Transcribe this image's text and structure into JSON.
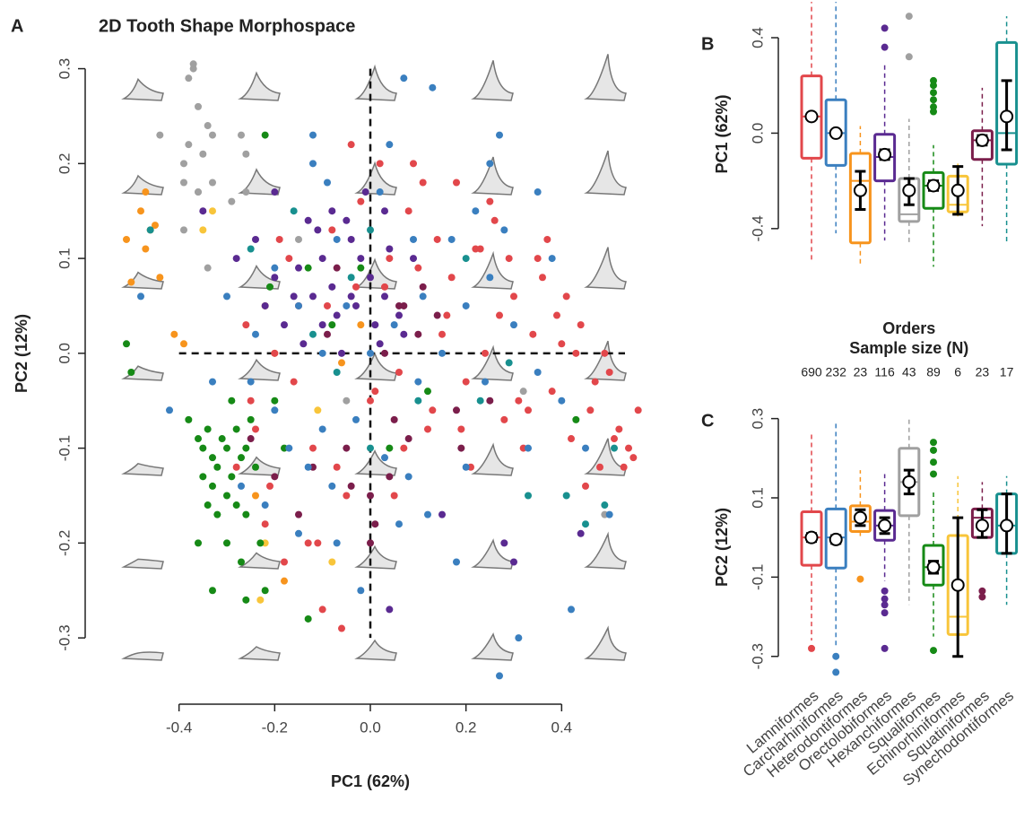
{
  "chart_data": [
    {
      "type": "scatter",
      "panel": "A",
      "title": "2D Tooth Shape Morphospace",
      "xlabel": "PC1 (62%)",
      "ylabel": "PC2 (12%)",
      "xlim": [
        -0.57,
        0.57
      ],
      "ylim": [
        -0.35,
        0.31
      ],
      "xticks": [
        -0.4,
        -0.2,
        {
          "value": 0,
          "label": "0.0"
        },
        0.2,
        0.4
      ],
      "yticks": [
        -0.3,
        -0.2,
        -0.1,
        {
          "value": 0,
          "label": "0.0"
        },
        0.1,
        0.2,
        0.3
      ],
      "series": [
        {
          "color": "#a0a0a0",
          "x": [
            -0.37,
            -0.37,
            -0.38,
            -0.36,
            -0.34,
            -0.38,
            -0.39,
            -0.35,
            -0.33,
            -0.36,
            -0.33,
            -0.27,
            -0.26,
            -0.29,
            -0.26,
            -0.44,
            -0.39,
            -0.34,
            -0.15,
            -0.05,
            0.32,
            0.49,
            -0.39,
            -0.36
          ],
          "values": [
            0.3,
            0.305,
            0.29,
            0.26,
            0.24,
            0.22,
            0.2,
            0.21,
            0.23,
            0.17,
            0.18,
            0.23,
            0.21,
            0.16,
            0.17,
            0.23,
            0.13,
            0.09,
            0.12,
            -0.05,
            -0.04,
            -0.17,
            0.18,
            0.17
          ]
        },
        {
          "color": "#f7941d",
          "x": [
            -0.51,
            -0.48,
            -0.46,
            -0.45,
            -0.47,
            -0.5,
            -0.44,
            -0.41,
            -0.39,
            -0.22,
            -0.2,
            -0.24,
            -0.18,
            -0.02,
            -0.06,
            -0.47
          ],
          "values": [
            0.12,
            0.15,
            0.13,
            0.135,
            0.11,
            0.075,
            0.08,
            0.02,
            0.01,
            0.05,
            0.0,
            -0.15,
            -0.24,
            0.03,
            -0.01,
            0.17
          ]
        },
        {
          "color": "#f8c53a",
          "x": [
            -0.33,
            -0.23,
            -0.22,
            -0.11,
            -0.08,
            -0.35
          ],
          "values": [
            0.15,
            -0.26,
            -0.2,
            -0.06,
            -0.22,
            0.13
          ]
        },
        {
          "color": "#168a16",
          "x": [
            -0.38,
            -0.36,
            -0.35,
            -0.34,
            -0.33,
            -0.32,
            -0.31,
            -0.3,
            -0.29,
            -0.28,
            -0.27,
            -0.26,
            -0.25,
            -0.24,
            -0.33,
            -0.3,
            -0.28,
            -0.26,
            -0.32,
            -0.35,
            -0.34,
            -0.3,
            -0.27,
            -0.23,
            -0.22,
            -0.33,
            -0.26,
            -0.13,
            -0.51,
            -0.5,
            -0.22,
            -0.21,
            -0.13,
            -0.08,
            -0.02,
            0.04,
            0.12,
            0.43,
            -0.2,
            -0.18,
            -0.36,
            -0.29
          ],
          "values": [
            -0.07,
            -0.09,
            -0.1,
            -0.08,
            -0.11,
            -0.12,
            -0.09,
            -0.1,
            -0.13,
            -0.08,
            -0.11,
            -0.1,
            -0.07,
            -0.12,
            -0.14,
            -0.15,
            -0.16,
            -0.17,
            -0.17,
            -0.13,
            -0.16,
            -0.2,
            -0.22,
            -0.2,
            -0.25,
            -0.25,
            -0.26,
            -0.28,
            0.01,
            -0.02,
            0.23,
            0.07,
            0.09,
            0.03,
            0.09,
            -0.1,
            -0.04,
            -0.07,
            -0.05,
            -0.1,
            -0.2,
            -0.05
          ]
        },
        {
          "color": "#18908f",
          "x": [
            -0.46,
            -0.25,
            -0.12,
            -0.07,
            0.0,
            0.2,
            0.33,
            0.41,
            0.45,
            0.51,
            0.49,
            0.1,
            -0.16,
            0.0,
            -0.04,
            0.23,
            0.29
          ],
          "values": [
            0.13,
            0.11,
            0.02,
            -0.02,
            -0.1,
            0.1,
            -0.15,
            -0.15,
            -0.18,
            -0.1,
            -0.16,
            -0.05,
            0.15,
            0.13,
            0.08,
            -0.05,
            -0.01
          ]
        },
        {
          "color": "#7b1e4b",
          "x": [
            -0.12,
            0.0,
            0.05,
            -0.04,
            0.1,
            -0.2,
            0.03,
            0.08,
            -0.05,
            0.18,
            0.14,
            0.01,
            0.0,
            -0.07,
            0.06,
            -0.15,
            0.19,
            0.25,
            -0.09,
            0.04,
            0.07,
            0.11,
            -0.25
          ],
          "values": [
            -0.12,
            -0.15,
            -0.07,
            -0.14,
            0.02,
            -0.13,
            0.0,
            -0.09,
            -0.1,
            -0.06,
            0.04,
            -0.18,
            -0.2,
            0.09,
            0.05,
            -0.17,
            -0.1,
            -0.05,
            0.02,
            -0.13,
            0.05,
            0.07,
            -0.09
          ]
        },
        {
          "color": "#5a2a91",
          "x": [
            -0.2,
            -0.13,
            -0.08,
            -0.05,
            -0.1,
            -0.15,
            -0.2,
            -0.16,
            -0.12,
            -0.08,
            -0.04,
            -0.02,
            0.0,
            0.03,
            0.06,
            -0.18,
            -0.1,
            -0.07,
            -0.03,
            0.01,
            -0.14,
            -0.06,
            0.02,
            -0.24,
            -0.28,
            -0.22,
            -0.11,
            -0.04,
            0.04,
            0.09,
            0.15,
            0.28,
            0.3,
            0.44,
            0.04,
            -0.01,
            0.03,
            -0.35,
            0.07
          ],
          "values": [
            0.17,
            0.14,
            0.15,
            0.14,
            0.1,
            0.09,
            0.08,
            0.06,
            0.06,
            0.07,
            0.06,
            0.1,
            0.08,
            0.06,
            0.04,
            0.03,
            0.03,
            0.04,
            0.05,
            0.03,
            0.01,
            0.0,
            0.01,
            0.12,
            0.1,
            0.05,
            0.13,
            0.12,
            0.11,
            0.1,
            -0.17,
            -0.2,
            -0.22,
            -0.19,
            -0.27,
            0.17,
            0.15,
            0.15,
            0.02
          ]
        },
        {
          "color": "#e2474b",
          "x": [
            -0.28,
            -0.25,
            -0.22,
            -0.2,
            -0.18,
            -0.15,
            -0.12,
            -0.1,
            -0.08,
            -0.05,
            -0.03,
            0.0,
            0.02,
            0.04,
            0.06,
            0.08,
            0.1,
            0.12,
            0.14,
            0.16,
            0.18,
            0.2,
            0.22,
            0.24,
            0.26,
            0.28,
            0.3,
            0.32,
            0.34,
            0.36,
            0.38,
            0.4,
            0.42,
            0.44,
            0.46,
            0.48,
            0.5,
            0.52,
            0.54,
            0.56,
            -0.26,
            -0.21,
            -0.17,
            -0.13,
            -0.09,
            -0.06,
            -0.02,
            0.01,
            0.05,
            0.09,
            0.13,
            0.17,
            0.21,
            0.25,
            0.29,
            0.33,
            0.37,
            0.41,
            0.45,
            0.49,
            0.53,
            -0.24,
            -0.16,
            -0.07,
            0.03,
            0.11,
            0.19,
            0.27,
            0.35,
            0.43,
            0.51,
            -0.19,
            -0.11,
            -0.04,
            0.07,
            0.15,
            0.23,
            0.31,
            0.39,
            0.47,
            0.55
          ],
          "values": [
            -0.12,
            -0.05,
            -0.18,
            0.0,
            -0.22,
            0.05,
            -0.1,
            -0.27,
            0.13,
            -0.15,
            0.07,
            -0.05,
            0.2,
            0.1,
            -0.02,
            0.15,
            0.09,
            -0.08,
            0.12,
            0.04,
            0.18,
            -0.03,
            0.11,
            0.0,
            0.14,
            -0.07,
            0.06,
            -0.1,
            0.02,
            0.08,
            -0.04,
            0.01,
            -0.09,
            0.03,
            -0.06,
            -0.12,
            -0.02,
            -0.08,
            -0.1,
            -0.06,
            0.03,
            -0.14,
            0.1,
            -0.2,
            0.05,
            -0.29,
            0.16,
            -0.04,
            -0.15,
            0.2,
            -0.06,
            0.08,
            -0.12,
            0.16,
            0.1,
            -0.06,
            0.12,
            0.06,
            -0.14,
            0.0,
            -0.12,
            -0.08,
            -0.03,
            -0.12,
            0.07,
            0.18,
            -0.08,
            0.04,
            0.1,
            0.0,
            -0.09,
            0.12,
            -0.2,
            0.22,
            -0.1,
            0.02,
            0.11,
            -0.05,
            0.04,
            -0.03,
            -0.11
          ]
        },
        {
          "color": "#3a7fbf",
          "x": [
            0.07,
            0.13,
            -0.12,
            0.25,
            0.27,
            0.35,
            0.04,
            -0.09,
            -0.2,
            -0.15,
            -0.1,
            -0.05,
            0.0,
            0.05,
            0.1,
            0.15,
            0.2,
            0.25,
            0.3,
            0.35,
            0.4,
            0.45,
            -0.25,
            -0.2,
            -0.17,
            -0.13,
            -0.08,
            -0.03,
            0.03,
            0.08,
            0.12,
            0.2,
            -0.27,
            -0.22,
            -0.15,
            -0.07,
            0.27,
            0.31,
            0.42,
            0.09,
            0.17,
            0.28,
            -0.12,
            -0.3,
            -0.42,
            -0.48,
            -0.24,
            0.5,
            0.38,
            0.18,
            -0.02,
            0.02,
            -0.07,
            0.11,
            0.24,
            -0.33,
            0.06,
            -0.1,
            0.33,
            0.22
          ],
          "values": [
            0.29,
            0.28,
            0.23,
            0.2,
            0.23,
            0.17,
            0.22,
            0.18,
            0.09,
            0.05,
            0.0,
            0.05,
            0.0,
            0.03,
            -0.03,
            0.0,
            0.05,
            0.08,
            0.03,
            -0.02,
            -0.05,
            -0.1,
            -0.03,
            -0.06,
            -0.1,
            -0.12,
            -0.14,
            -0.07,
            -0.11,
            -0.13,
            -0.17,
            -0.12,
            -0.14,
            -0.16,
            -0.19,
            -0.2,
            -0.34,
            -0.3,
            -0.27,
            0.12,
            0.12,
            0.13,
            0.2,
            0.06,
            -0.06,
            0.06,
            0.02,
            -0.17,
            0.1,
            -0.22,
            -0.25,
            0.17,
            0.12,
            0.06,
            -0.03,
            -0.03,
            -0.18,
            -0.08,
            -0.1,
            0.15
          ]
        }
      ]
    },
    {
      "type": "boxplot",
      "panel": "B",
      "ylabel": "PC1 (62%)",
      "ylim": [
        -0.566,
        0.558
      ],
      "yticks": [
        -0.4,
        {
          "value": 0,
          "label": "0.0"
        },
        0.4
      ],
      "colors": [
        "#e2474b",
        "#3a7fbf",
        "#f7941d",
        "#5a2a91",
        "#a0a0a0",
        "#168a16",
        "#f8c53a",
        "#7b1e4b",
        "#18908f"
      ],
      "whisker_low": [
        -0.53,
        -0.42,
        -0.56,
        -0.45,
        -0.47,
        -0.56,
        -0.36,
        -0.39,
        -0.46
      ],
      "q1": [
        -0.105,
        -0.135,
        -0.46,
        -0.2,
        -0.37,
        -0.315,
        -0.33,
        -0.11,
        -0.13
      ],
      "median": [
        0.07,
        0.0,
        -0.2,
        -0.1,
        -0.34,
        -0.22,
        -0.3,
        -0.03,
        0.0
      ],
      "q3": [
        0.24,
        0.14,
        -0.085,
        -0.005,
        -0.19,
        -0.165,
        -0.18,
        0.01,
        0.38
      ],
      "whisker_high": [
        0.55,
        0.55,
        0.03,
        0.29,
        0.06,
        -0.05,
        -0.12,
        0.19,
        0.49
      ],
      "mean": [
        0.07,
        0.0,
        -0.24,
        -0.09,
        -0.24,
        -0.22,
        -0.24,
        -0.03,
        0.07
      ],
      "ci_low": [
        0.06,
        -0.01,
        -0.32,
        -0.11,
        -0.3,
        -0.24,
        -0.34,
        -0.05,
        -0.07
      ],
      "ci_high": [
        0.08,
        0.01,
        -0.16,
        -0.07,
        -0.19,
        -0.2,
        -0.14,
        -0.01,
        0.22
      ],
      "outliers": [
        [],
        [],
        [],
        [
          0.44,
          0.36
        ],
        [
          0.49,
          0.32
        ],
        [
          0.22,
          0.2,
          0.17,
          0.14,
          0.11,
          0.09
        ],
        [],
        [],
        []
      ]
    },
    {
      "type": "boxplot",
      "panel": "C",
      "ylabel": "PC2 (12%)",
      "ylim": [
        -0.364,
        0.315
      ],
      "yticks": [
        -0.3,
        -0.1,
        0.1,
        0.3
      ],
      "xlabel": "Orders",
      "sample_size_label": "Sample size (N)",
      "sample_sizes": [
        690,
        232,
        23,
        116,
        43,
        89,
        6,
        23,
        17
      ],
      "categories": [
        "Lamniformes",
        "Carcharhiniformes",
        "Heterodontiformes",
        "Orectolobiformes",
        "Hexanchiformes",
        "Squaliformes",
        "Echinorhiniformes",
        "Squatiniformes",
        "Synechodontiformes"
      ],
      "colors": [
        "#e2474b",
        "#3a7fbf",
        "#f7941d",
        "#5a2a91",
        "#a0a0a0",
        "#168a16",
        "#f8c53a",
        "#7b1e4b",
        "#18908f"
      ],
      "whisker_low": [
        -0.26,
        -0.28,
        0.0,
        -0.11,
        -0.17,
        -0.25,
        -0.245,
        0.0,
        -0.17
      ],
      "q1": [
        -0.07,
        -0.077,
        0.015,
        -0.007,
        0.055,
        -0.12,
        -0.245,
        0.0,
        -0.04
      ],
      "median": [
        0.0,
        0.0,
        0.04,
        0.03,
        0.14,
        -0.075,
        -0.2,
        0.05,
        0.03
      ],
      "q3": [
        0.065,
        0.072,
        0.08,
        0.068,
        0.225,
        -0.02,
        0.005,
        0.072,
        0.11
      ],
      "whisker_high": [
        0.265,
        0.29,
        0.17,
        0.16,
        0.3,
        0.12,
        0.155,
        0.14,
        0.155
      ],
      "mean": [
        0.0,
        -0.005,
        0.05,
        0.03,
        0.14,
        -0.075,
        -0.12,
        0.03,
        0.03
      ],
      "ci_low": [
        -0.01,
        -0.015,
        0.03,
        0.01,
        0.11,
        -0.09,
        -0.3,
        0.0,
        -0.04
      ],
      "ci_high": [
        0.01,
        0.005,
        0.07,
        0.05,
        0.17,
        -0.06,
        0.05,
        0.07,
        0.11
      ],
      "outliers": [
        [
          -0.28
        ],
        [
          -0.3,
          -0.34
        ],
        [
          -0.105
        ],
        [
          -0.135,
          -0.155,
          -0.17,
          -0.19,
          -0.28
        ],
        [],
        [
          0.24,
          0.22,
          0.19,
          0.16,
          -0.285
        ],
        [],
        [
          -0.135,
          -0.15
        ],
        []
      ]
    }
  ]
}
